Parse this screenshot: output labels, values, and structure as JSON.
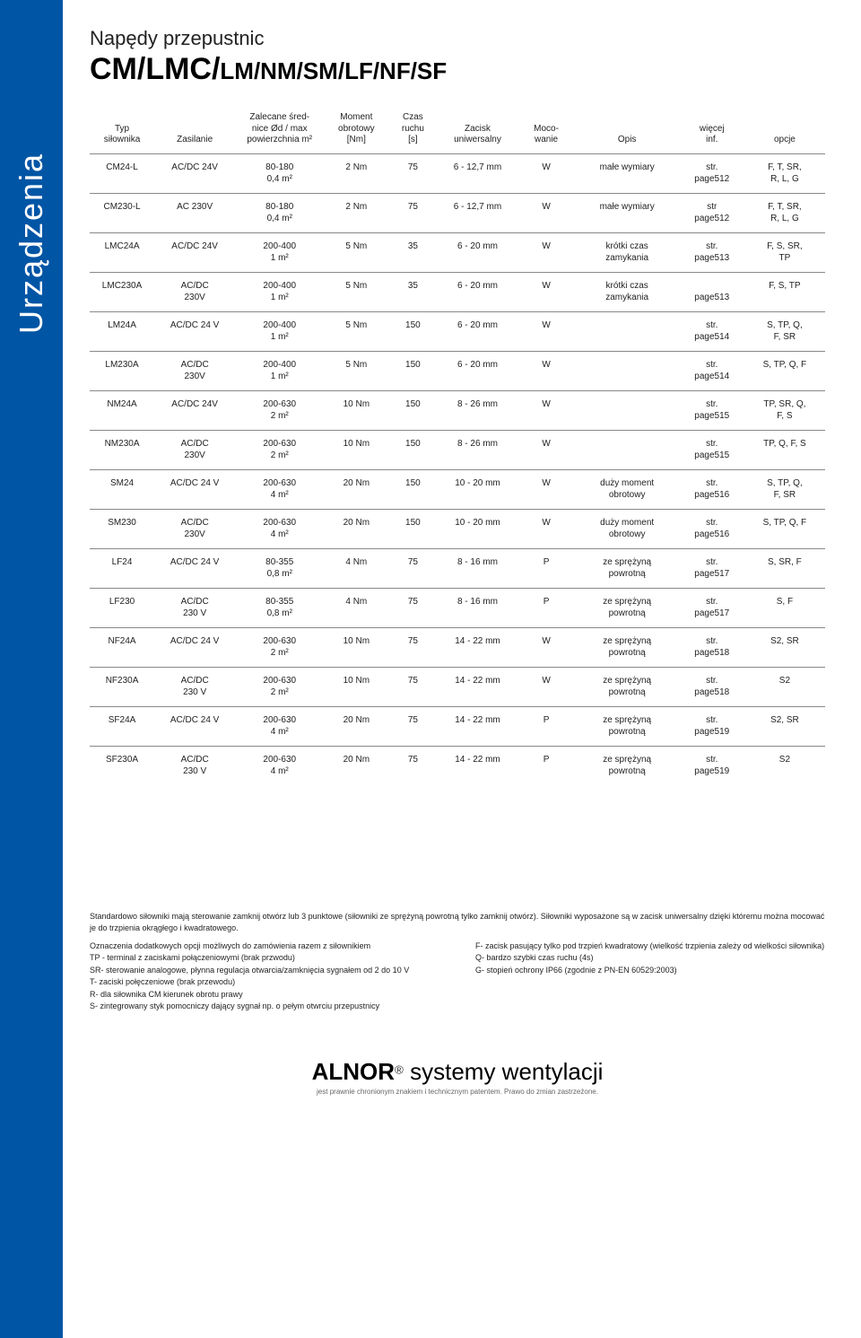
{
  "sidebar_label": "Urządzenia",
  "header": {
    "small": "Napędy przepustnic",
    "big_bold": "CM/LMC/",
    "big_rest": "LM/NM/SM/LF/NF/SF"
  },
  "table": {
    "headers": [
      "Typ\nsiłownika",
      "Zasilanie",
      "Zalecane śred-\nnice Ød / max\npowierzchnia m²",
      "Moment\nobrotowy\n[Nm]",
      "Czas\nruchu\n[s]",
      "Zacisk\nuniwersalny",
      "Moco-\nwanie",
      "Opis",
      "więcej\ninf.",
      "opcje"
    ],
    "rows": [
      {
        "typ": "CM24-L",
        "zas": "AC/DC 24V",
        "sred": "80-180\n0,4 m²",
        "mom": "2 Nm",
        "czas": "75",
        "zac": "6 - 12,7 mm",
        "moc": "W",
        "opis": "małe wymiary",
        "inf": "str.\npage512",
        "opc": "F, T, SR,\nR, L, G"
      },
      {
        "typ": "CM230-L",
        "zas": "AC 230V",
        "sred": "80-180\n0,4 m²",
        "mom": "2 Nm",
        "czas": "75",
        "zac": "6 - 12,7 mm",
        "moc": "W",
        "opis": "małe wymiary",
        "inf": "str\npage512",
        "opc": "F, T, SR,\nR, L, G"
      },
      {
        "typ": "LMC24A",
        "zas": "AC/DC 24V",
        "sred": "200-400\n1 m²",
        "mom": "5 Nm",
        "czas": "35",
        "zac": "6 - 20 mm",
        "moc": "W",
        "opis": "krótki czas\nzamykania",
        "inf": "str.\npage513",
        "opc": "F, S, SR,\nTP"
      },
      {
        "typ": "LMC230A",
        "zas": "AC/DC\n230V",
        "sred": "200-400\n1 m²",
        "mom": "5 Nm",
        "czas": "35",
        "zac": "6 - 20 mm",
        "moc": "W",
        "opis": "krótki czas\nzamykania",
        "inf": "\npage513",
        "opc": "F, S, TP"
      },
      {
        "typ": "LM24A",
        "zas": "AC/DC 24 V",
        "sred": "200-400\n1 m²",
        "mom": "5 Nm",
        "czas": "150",
        "zac": "6 - 20 mm",
        "moc": "W",
        "opis": "",
        "inf": "str.\npage514",
        "opc": "S, TP, Q,\nF, SR"
      },
      {
        "typ": "LM230A",
        "zas": "AC/DC\n230V",
        "sred": "200-400\n1 m²",
        "mom": "5 Nm",
        "czas": "150",
        "zac": "6 - 20 mm",
        "moc": "W",
        "opis": "",
        "inf": "str.\npage514",
        "opc": "S, TP, Q, F"
      },
      {
        "typ": "NM24A",
        "zas": "AC/DC 24V",
        "sred": "200-630\n2 m²",
        "mom": "10 Nm",
        "czas": "150",
        "zac": "8 - 26 mm",
        "moc": "W",
        "opis": "",
        "inf": "str.\npage515",
        "opc": "TP, SR, Q,\nF, S"
      },
      {
        "typ": "NM230A",
        "zas": "AC/DC\n230V",
        "sred": "200-630\n2 m²",
        "mom": "10 Nm",
        "czas": "150",
        "zac": "8 - 26 mm",
        "moc": "W",
        "opis": "",
        "inf": "str.\npage515",
        "opc": "TP, Q, F, S"
      },
      {
        "typ": "SM24",
        "zas": "AC/DC 24 V",
        "sred": "200-630\n4 m²",
        "mom": "20 Nm",
        "czas": "150",
        "zac": "10 - 20 mm",
        "moc": "W",
        "opis": "duży moment\nobrotowy",
        "inf": "str.\npage516",
        "opc": "S, TP, Q,\nF, SR"
      },
      {
        "typ": "SM230",
        "zas": "AC/DC\n230V",
        "sred": "200-630\n4 m²",
        "mom": "20 Nm",
        "czas": "150",
        "zac": "10 - 20 mm",
        "moc": "W",
        "opis": "duży moment\nobrotowy",
        "inf": "str.\npage516",
        "opc": "S, TP, Q, F"
      },
      {
        "typ": "LF24",
        "zas": "AC/DC 24 V",
        "sred": "80-355\n0,8 m²",
        "mom": "4 Nm",
        "czas": "75",
        "zac": "8 - 16 mm",
        "moc": "P",
        "opis": "ze sprężyną\npowrotną",
        "inf": "str.\npage517",
        "opc": "S, SR, F"
      },
      {
        "typ": "LF230",
        "zas": "AC/DC\n230 V",
        "sred": "80-355\n0,8 m²",
        "mom": "4 Nm",
        "czas": "75",
        "zac": "8 - 16 mm",
        "moc": "P",
        "opis": "ze sprężyną\npowrotną",
        "inf": "str.\npage517",
        "opc": "S, F"
      },
      {
        "typ": "NF24A",
        "zas": "AC/DC 24 V",
        "sred": "200-630\n2 m²",
        "mom": "10 Nm",
        "czas": "75",
        "zac": "14 - 22 mm",
        "moc": "W",
        "opis": "ze sprężyną\npowrotną",
        "inf": "str.\npage518",
        "opc": "S2, SR"
      },
      {
        "typ": "NF230A",
        "zas": "AC/DC\n230 V",
        "sred": "200-630\n2 m²",
        "mom": "10 Nm",
        "czas": "75",
        "zac": "14 - 22 mm",
        "moc": "W",
        "opis": "ze sprężyną\npowrotną",
        "inf": "str.\npage518",
        "opc": "S2"
      },
      {
        "typ": "SF24A",
        "zas": "AC/DC 24 V",
        "sred": "200-630\n4 m²",
        "mom": "20 Nm",
        "czas": "75",
        "zac": "14 - 22 mm",
        "moc": "P",
        "opis": "ze sprężyną\npowrotną",
        "inf": "str.\npage519",
        "opc": "S2, SR"
      },
      {
        "typ": "SF230A",
        "zas": "AC/DC\n230 V",
        "sred": "200-630\n4 m²",
        "mom": "20 Nm",
        "czas": "75",
        "zac": "14 - 22 mm",
        "moc": "P",
        "opis": "ze sprężyną\npowrotną",
        "inf": "str.\npage519",
        "opc": "S2"
      }
    ]
  },
  "notes": {
    "intro": "Standardowo siłowniki mają sterowanie zamknij otwórz lub 3 punktowe (siłowniki ze sprężyną powrotną tylko zamknij otwórz). Siłowniki wyposażone są w zacisk uniwersalny dzięki któremu można mocować je do trzpienia okrągłego i kwadratowego.",
    "left": [
      "Oznaczenia dodatkowych opcji możliwych do zamówienia razem z siłownikiem",
      "TP - terminal z zaciskami połączeniowymi  (brak przwodu)",
      "SR- sterowanie analogowe, płynna regulacja otwarcia/zamknięcia  sygnałem od 2 do 10 V",
      "T- zaciski połęczeniowe (brak przewodu)",
      "R- dla siłownika CM kierunek obrotu prawy",
      "S- zintegrowany styk pomocniczy dający sygnał np. o pełym otwrciu przepustnicy"
    ],
    "right": [
      "F- zacisk pasujący tylko pod trzpień kwadratowy (wielkość trzpienia zależy od wielkości siłownika)",
      "Q- bardzo szybki czas ruchu (4s)",
      "G- stopień ochrony IP66 (zgodnie z PN-EN 60529:2003)"
    ]
  },
  "footer": {
    "brand": "ALNOR",
    "reg": "®",
    "tagline": " systemy wentylacji",
    "sub": "jest prawnie chronionym znakiem i technicznym patentem. Prawo do zmian zastrzeżone."
  }
}
